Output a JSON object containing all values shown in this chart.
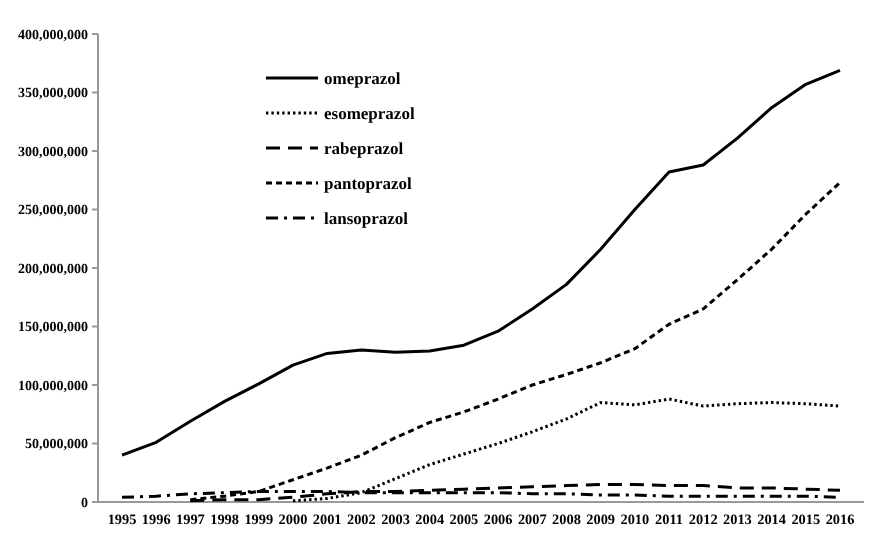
{
  "chart_data": {
    "type": "line",
    "categories": [
      "1995",
      "1996",
      "1997",
      "1998",
      "1999",
      "2000",
      "2001",
      "2002",
      "2003",
      "2004",
      "2005",
      "2006",
      "2007",
      "2008",
      "2009",
      "2010",
      "2011",
      "2012",
      "2013",
      "2014",
      "2015",
      "2016"
    ],
    "series": [
      {
        "name": "omeprazol",
        "color": "#000000",
        "line_style": "solid",
        "values": [
          40000000,
          51000000,
          69000000,
          86000000,
          101000000,
          117000000,
          127000000,
          130000000,
          128000000,
          129000000,
          134000000,
          146000000,
          165000000,
          186000000,
          216000000,
          250000000,
          282000000,
          288000000,
          311000000,
          337000000,
          357000000,
          369000000
        ]
      },
      {
        "name": "esomeprazol",
        "color": "#000000",
        "line_style": "dotted",
        "values": [
          null,
          null,
          null,
          null,
          null,
          1000000,
          3000000,
          8000000,
          20000000,
          32000000,
          41000000,
          50000000,
          60000000,
          71000000,
          85000000,
          83000000,
          88000000,
          82000000,
          84000000,
          85000000,
          84000000,
          82000000
        ]
      },
      {
        "name": "rabeprazol",
        "color": "#000000",
        "line_style": "longdash",
        "values": [
          null,
          null,
          1000000,
          2000000,
          2000000,
          4000000,
          7000000,
          9000000,
          9000000,
          10000000,
          11000000,
          12000000,
          13000000,
          14000000,
          15000000,
          15000000,
          14000000,
          14000000,
          12000000,
          12000000,
          11000000,
          10000000
        ]
      },
      {
        "name": "pantoprazol",
        "color": "#000000",
        "line_style": "dashed",
        "values": [
          null,
          null,
          2000000,
          5000000,
          9000000,
          19000000,
          29000000,
          40000000,
          55000000,
          68000000,
          77000000,
          88000000,
          100000000,
          109000000,
          119000000,
          131000000,
          152000000,
          165000000,
          190000000,
          216000000,
          246000000,
          273000000
        ]
      },
      {
        "name": "lansoprazol",
        "color": "#000000",
        "line_style": "dashdot",
        "values": [
          4000000,
          5000000,
          7000000,
          8000000,
          9000000,
          9000000,
          9000000,
          8000000,
          8000000,
          8000000,
          8000000,
          8000000,
          7000000,
          7000000,
          6000000,
          6000000,
          5000000,
          5000000,
          5000000,
          5000000,
          5000000,
          4000000
        ]
      }
    ],
    "ylim": [
      0,
      400000000
    ],
    "yticks": [
      0,
      {
        "value": 50000000,
        "label": "50,000,000"
      },
      {
        "value": 100000000,
        "label": "100,000,000"
      },
      {
        "value": 150000000,
        "label": "150,000,000"
      },
      {
        "value": 200000000,
        "label": "200,000,000"
      },
      {
        "value": 250000000,
        "label": "250,000,000"
      },
      {
        "value": 300000000,
        "label": "300,000,000"
      },
      {
        "value": 350000000,
        "label": "350,000,000"
      },
      {
        "value": 400000000,
        "label": "400,000,000"
      }
    ],
    "grid": false,
    "legend": "top left"
  }
}
